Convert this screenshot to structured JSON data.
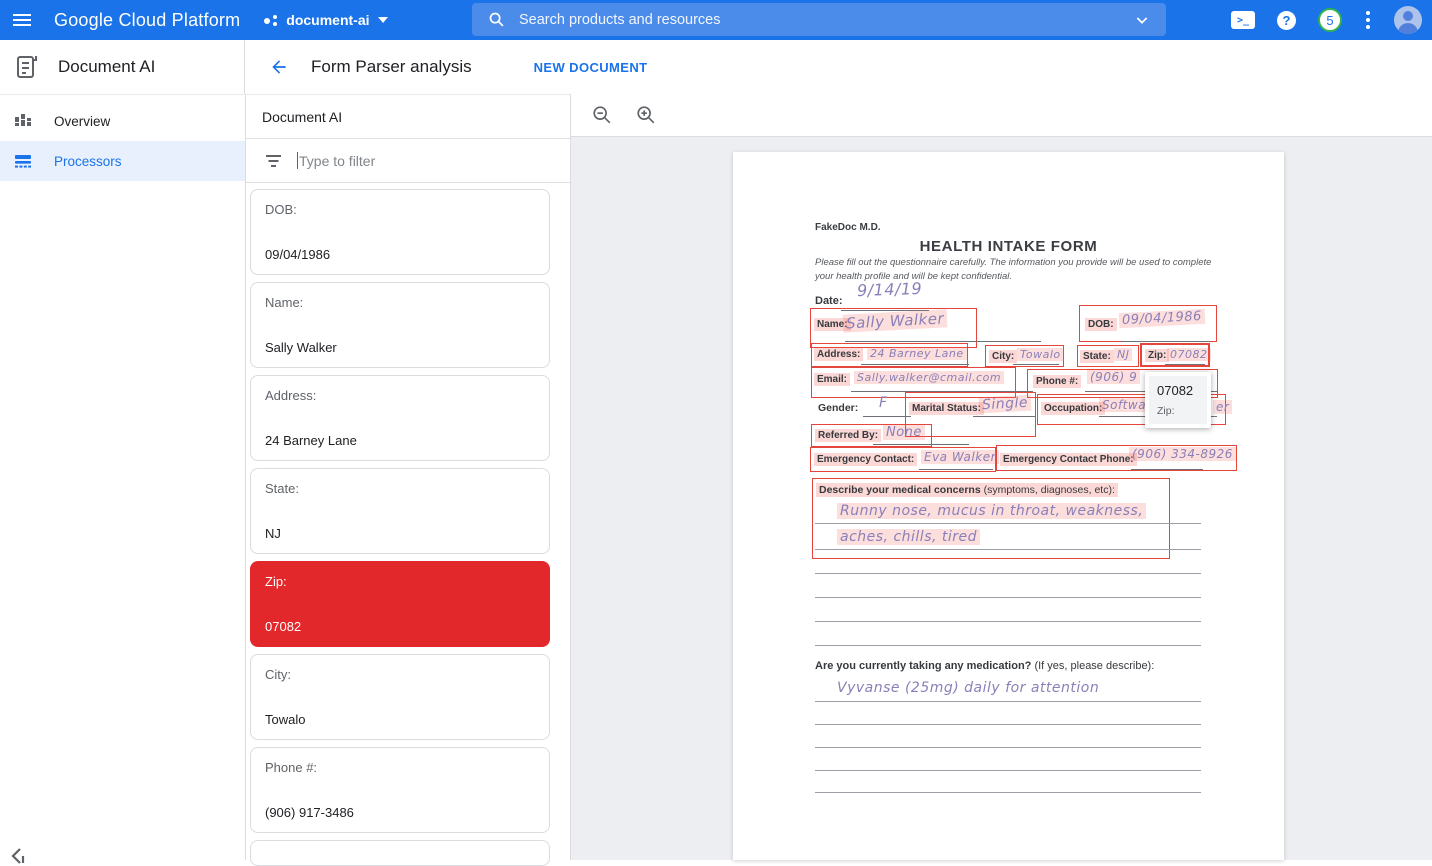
{
  "colors": {
    "accent": "#1a73e8",
    "highlight_red": "#e3282b",
    "badge_green": "#2fb353"
  },
  "icons": [
    "menu-icon",
    "apps-dots-icon",
    "chevron-down-icon",
    "search-icon",
    "cloud-shell-icon",
    "help-icon",
    "notification-badge",
    "kebab-icon",
    "avatar",
    "document-ai-icon",
    "back-arrow-icon",
    "overview-icon",
    "processors-icon",
    "filter-icon",
    "zoom-out-icon",
    "zoom-in-icon",
    "collapse-sidebar-icon"
  ],
  "header": {
    "product": "Google Cloud Platform",
    "project": "document-ai",
    "search_placeholder": "Search products and resources",
    "notification_count": "5"
  },
  "appbar": {
    "app_title": "Document AI",
    "page_title": "Form Parser analysis",
    "new_document": "NEW DOCUMENT"
  },
  "sidebar": {
    "items": [
      {
        "label": "Overview",
        "active": false
      },
      {
        "label": "Processors",
        "active": true
      }
    ]
  },
  "panel": {
    "title": "Document AI",
    "filter_placeholder": "Type to filter",
    "fields": [
      {
        "label": "DOB:",
        "value": "09/04/1986",
        "highlight": false
      },
      {
        "label": "Name:",
        "value": "Sally Walker",
        "highlight": false
      },
      {
        "label": "Address:",
        "value": "24 Barney Lane",
        "highlight": false
      },
      {
        "label": "State:",
        "value": "NJ",
        "highlight": false
      },
      {
        "label": "Zip:",
        "value": "07082",
        "highlight": true
      },
      {
        "label": "City:",
        "value": "Towalo",
        "highlight": false
      },
      {
        "label": "Phone #:",
        "value": "(906) 917-3486",
        "highlight": false
      }
    ]
  },
  "viewer": {
    "tooltip": {
      "value": "07082",
      "label": "Zip:"
    },
    "doc": {
      "clinic": "FakeDoc M.D.",
      "title": "HEALTH INTAKE FORM",
      "intro1": "Please fill out the questionnaire carefully. The information you provide will be used to complete",
      "intro2": "your health profile and will be kept confidential.",
      "fields": {
        "date_label": "Date:",
        "date": "9/14/19",
        "name_label": "Name:",
        "name": "Sally Walker",
        "dob_label": "DOB:",
        "dob": "09/04/1986",
        "address_label": "Address:",
        "address": "24 Barney Lane",
        "city_label": "City:",
        "city": "Towalo",
        "state_label": "State:",
        "state": "NJ",
        "zip_label": "Zip:",
        "zip": "07082",
        "email_label": "Email:",
        "email": "Sally.walker@cmail.com",
        "phone_label": "Phone #:",
        "phone": "(906) 9",
        "gender_label": "Gender:",
        "gender": "F",
        "marital_label": "Marital Status:",
        "marital": "Single",
        "occupation_label": "Occupation:",
        "occupation": "Software",
        "occupation_tail": "er",
        "referred_label": "Referred By:",
        "referred": "None",
        "emergency_label": "Emergency Contact:",
        "emergency": "Eva Walker",
        "emergency_phone_label": "Emergency Contact Phone:",
        "emergency_phone": "(906) 334-8926"
      },
      "concerns": {
        "bold": "Describe your medical concerns",
        "rest": " (symptoms, diagnoses, etc):",
        "line1": "Runny nose, mucus in throat, weakness,",
        "line2": "aches, chills, tired"
      },
      "medication": {
        "bold": "Are you currently taking any medication?",
        "rest": " (If yes, please describe):",
        "answer": "Vyvanse (25mg) daily for attention"
      }
    }
  }
}
